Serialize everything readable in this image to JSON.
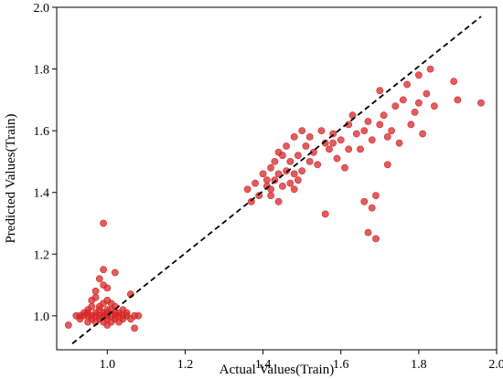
{
  "chart_data": {
    "type": "scatter",
    "xlabel": "Actual Values(Train)",
    "ylabel": "Predicted Values(Train)",
    "xlim": [
      0.87,
      2.0
    ],
    "ylim": [
      0.89,
      2.0
    ],
    "xticks": [
      1.0,
      1.2,
      1.4,
      1.6,
      1.8,
      2.0
    ],
    "xtick_labels": [
      "1.0",
      "1.2",
      "1.4",
      "1.6",
      "1.8",
      "2.0"
    ],
    "yticks": [
      1.0,
      1.2,
      1.4,
      1.6,
      1.8,
      2.0
    ],
    "ytick_labels": [
      "1.0",
      "1.2",
      "1.4",
      "1.6",
      "1.8",
      "2.0"
    ],
    "grid": false,
    "point_color": "#d62728",
    "line_color": "#000000",
    "reference_line": {
      "style": "dashed",
      "x": [
        0.91,
        1.96
      ],
      "y": [
        0.91,
        1.97
      ]
    },
    "series": [
      {
        "points": [
          [
            0.9,
            0.97
          ],
          [
            0.92,
            1.0
          ],
          [
            0.93,
            0.99
          ],
          [
            0.94,
            1.0
          ],
          [
            0.94,
            1.01
          ],
          [
            0.95,
            0.98
          ],
          [
            0.95,
            1.0
          ],
          [
            0.95,
            1.02
          ],
          [
            0.96,
            0.99
          ],
          [
            0.96,
            1.0
          ],
          [
            0.96,
            1.05
          ],
          [
            0.97,
            1.0
          ],
          [
            0.97,
            1.01
          ],
          [
            0.97,
            0.98
          ],
          [
            0.97,
            1.08
          ],
          [
            0.98,
            0.99
          ],
          [
            0.98,
            1.0
          ],
          [
            0.98,
            1.02
          ],
          [
            0.98,
            1.03
          ],
          [
            0.98,
            1.12
          ],
          [
            0.99,
            0.98
          ],
          [
            0.99,
            1.0
          ],
          [
            0.99,
            1.01
          ],
          [
            0.99,
            1.04
          ],
          [
            0.99,
            1.15
          ],
          [
            0.99,
            1.3
          ],
          [
            1.0,
            0.97
          ],
          [
            1.0,
            0.99
          ],
          [
            1.0,
            1.0
          ],
          [
            1.0,
            1.01
          ],
          [
            1.0,
            1.05
          ],
          [
            1.0,
            1.09
          ],
          [
            1.01,
            0.98
          ],
          [
            1.01,
            1.0
          ],
          [
            1.01,
            1.02
          ],
          [
            1.02,
            0.99
          ],
          [
            1.02,
            1.0
          ],
          [
            1.02,
            1.03
          ],
          [
            1.02,
            1.14
          ],
          [
            1.03,
            0.98
          ],
          [
            1.03,
            1.0
          ],
          [
            1.03,
            1.01
          ],
          [
            1.04,
            1.0
          ],
          [
            1.04,
            0.99
          ],
          [
            1.05,
            1.0
          ],
          [
            1.05,
            1.01
          ],
          [
            1.06,
            0.99
          ],
          [
            1.06,
            1.07
          ],
          [
            1.07,
            0.96
          ],
          [
            1.07,
            1.0
          ],
          [
            1.08,
            1.0
          ],
          [
            0.96,
            1.03
          ],
          [
            0.97,
            1.06
          ],
          [
            0.99,
            1.1
          ],
          [
            1.0,
            1.02
          ],
          [
            1.01,
            1.04
          ],
          [
            0.95,
            1.01
          ],
          [
            1.04,
            1.02
          ],
          [
            0.93,
            1.0
          ],
          [
            1.02,
            1.01
          ],
          [
            1.36,
            1.41
          ],
          [
            1.37,
            1.37
          ],
          [
            1.38,
            1.43
          ],
          [
            1.39,
            1.39
          ],
          [
            1.4,
            1.46
          ],
          [
            1.41,
            1.42
          ],
          [
            1.42,
            1.48
          ],
          [
            1.42,
            1.39
          ],
          [
            1.43,
            1.5
          ],
          [
            1.43,
            1.44
          ],
          [
            1.44,
            1.46
          ],
          [
            1.44,
            1.37
          ],
          [
            1.45,
            1.42
          ],
          [
            1.45,
            1.52
          ],
          [
            1.46,
            1.47
          ],
          [
            1.46,
            1.55
          ],
          [
            1.47,
            1.43
          ],
          [
            1.47,
            1.5
          ],
          [
            1.48,
            1.46
          ],
          [
            1.48,
            1.58
          ],
          [
            1.49,
            1.52
          ],
          [
            1.49,
            1.44
          ],
          [
            1.5,
            1.47
          ],
          [
            1.5,
            1.6
          ],
          [
            1.51,
            1.55
          ],
          [
            1.52,
            1.58
          ],
          [
            1.53,
            1.53
          ],
          [
            1.54,
            1.49
          ],
          [
            1.55,
            1.6
          ],
          [
            1.56,
            1.56
          ],
          [
            1.56,
            1.33
          ],
          [
            1.57,
            1.54
          ],
          [
            1.58,
            1.59
          ],
          [
            1.59,
            1.51
          ],
          [
            1.6,
            1.57
          ],
          [
            1.61,
            1.48
          ],
          [
            1.62,
            1.62
          ],
          [
            1.63,
            1.65
          ],
          [
            1.64,
            1.59
          ],
          [
            1.65,
            1.54
          ],
          [
            1.66,
            1.6
          ],
          [
            1.66,
            1.37
          ],
          [
            1.67,
            1.63
          ],
          [
            1.67,
            1.27
          ],
          [
            1.68,
            1.57
          ],
          [
            1.68,
            1.35
          ],
          [
            1.69,
            1.39
          ],
          [
            1.69,
            1.25
          ],
          [
            1.7,
            1.73
          ],
          [
            1.7,
            1.62
          ],
          [
            1.71,
            1.65
          ],
          [
            1.72,
            1.49
          ],
          [
            1.73,
            1.6
          ],
          [
            1.74,
            1.68
          ],
          [
            1.75,
            1.56
          ],
          [
            1.76,
            1.7
          ],
          [
            1.77,
            1.75
          ],
          [
            1.78,
            1.62
          ],
          [
            1.79,
            1.66
          ],
          [
            1.8,
            1.78
          ],
          [
            1.81,
            1.59
          ],
          [
            1.82,
            1.72
          ],
          [
            1.83,
            1.8
          ],
          [
            1.84,
            1.68
          ],
          [
            1.89,
            1.76
          ],
          [
            1.9,
            1.7
          ],
          [
            1.96,
            1.69
          ],
          [
            1.42,
            1.41
          ],
          [
            1.44,
            1.53
          ],
          [
            1.48,
            1.41
          ],
          [
            1.52,
            1.5
          ],
          [
            1.58,
            1.56
          ],
          [
            1.62,
            1.54
          ],
          [
            1.72,
            1.58
          ],
          [
            1.8,
            1.69
          ],
          [
            1.41,
            1.44
          ]
        ]
      }
    ]
  }
}
